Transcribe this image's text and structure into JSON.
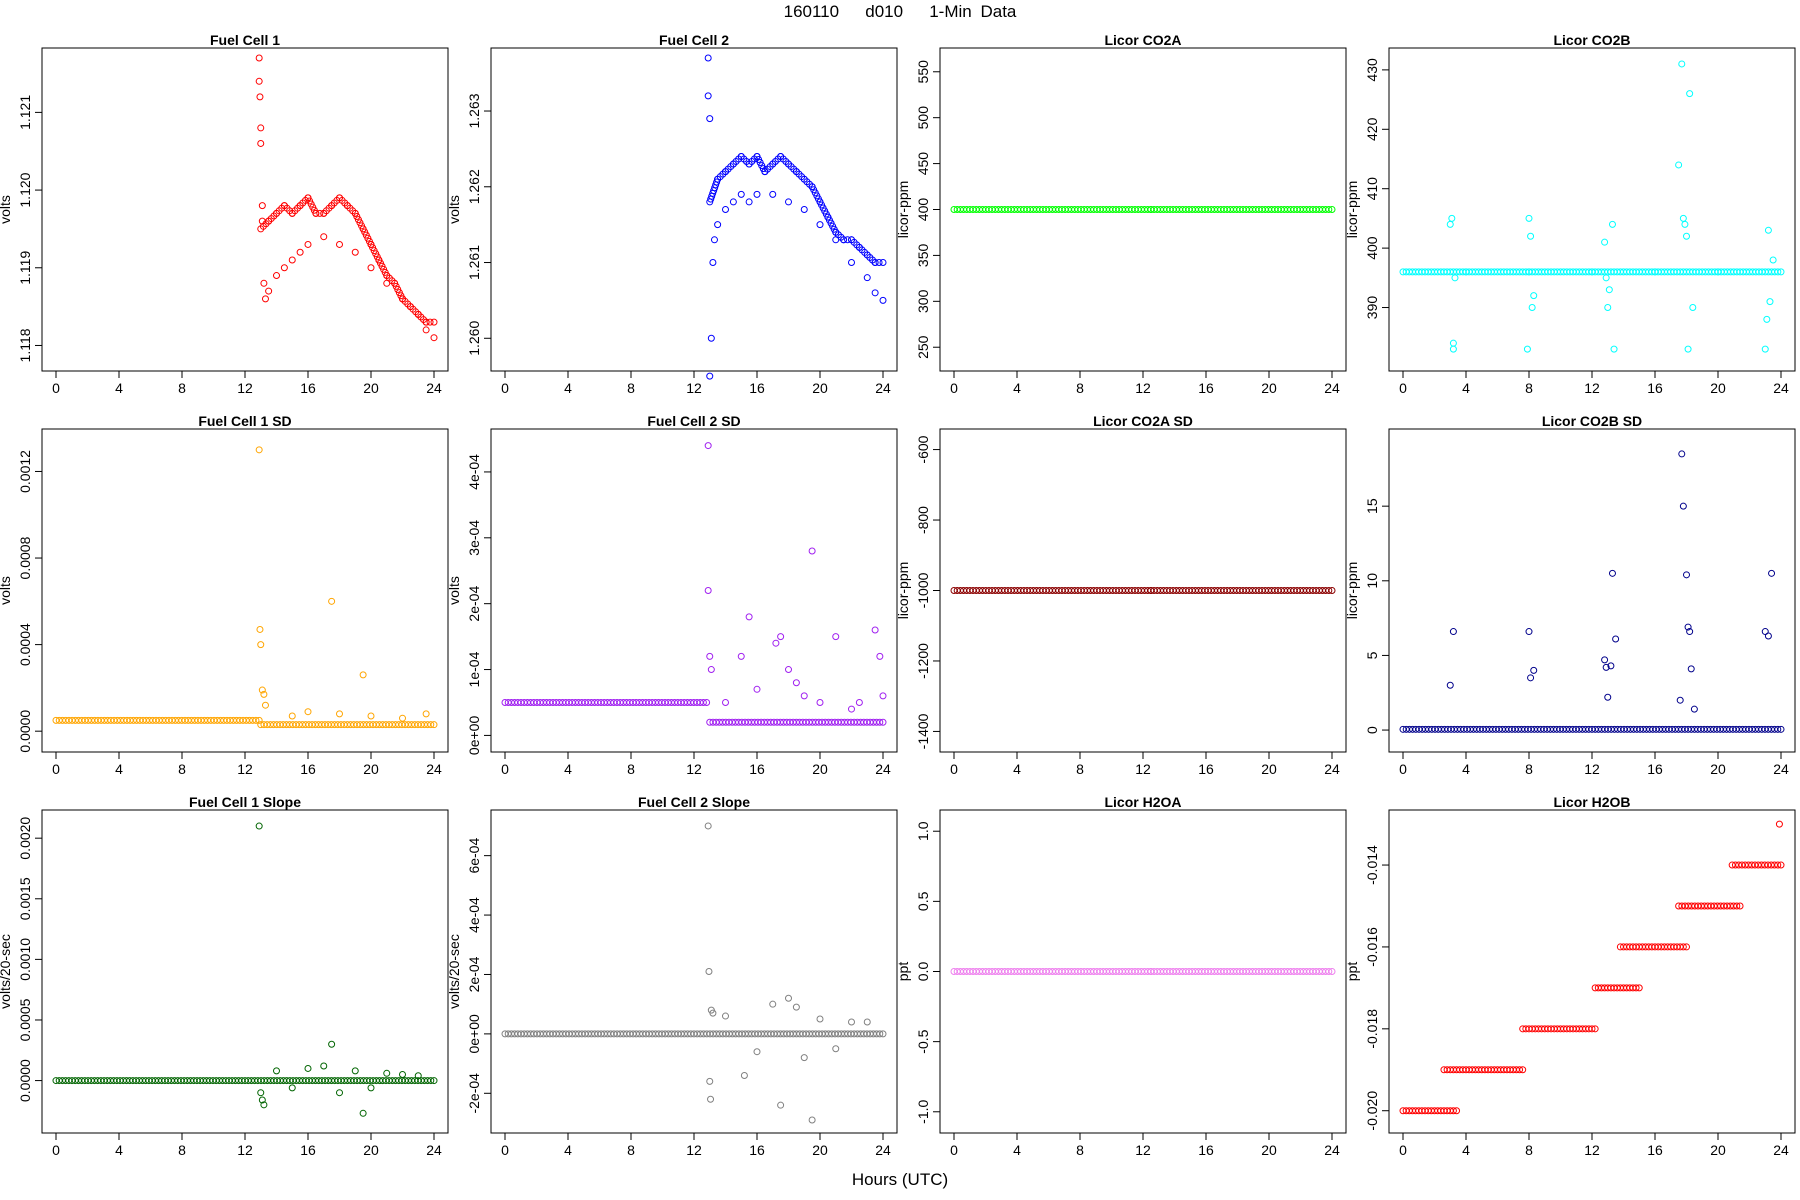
{
  "figure": {
    "title": "160110   d010   1-Min Data",
    "xlabel": "Hours (UTC)"
  },
  "chart_data": [
    {
      "id": "fc1",
      "type": "scatter",
      "title": "Fuel Cell 1",
      "ylabel": "volts",
      "color": "#ff0000",
      "xlim": [
        0,
        24
      ],
      "xticks": [
        0,
        4,
        8,
        12,
        16,
        20,
        24
      ],
      "ylim": [
        1.1178,
        1.1217
      ],
      "yticks": [
        1.118,
        1.119,
        1.12,
        1.121
      ],
      "yticklabels": [
        "1.118",
        "1.119",
        "1.120",
        "1.121"
      ],
      "series": [
        {
          "x": [
            13,
            13.5,
            14,
            14.5,
            15,
            15.5,
            16,
            16.5,
            17,
            17.5,
            18,
            18.5,
            19,
            19.5,
            20,
            20.5,
            21,
            21.5,
            22,
            22.5,
            23,
            23.5,
            24
          ],
          "y": [
            1.1195,
            1.1196,
            1.1197,
            1.1198,
            1.1197,
            1.1198,
            1.1199,
            1.1197,
            1.1197,
            1.1198,
            1.1199,
            1.1198,
            1.1197,
            1.1195,
            1.1193,
            1.1191,
            1.1189,
            1.1188,
            1.1186,
            1.1185,
            1.1184,
            1.1183,
            1.1183
          ]
        }
      ],
      "points": {
        "x": [
          12.9,
          12.9,
          12.95,
          13,
          13,
          13.1,
          13.1,
          13.2,
          13.3,
          13.5,
          14,
          14.5,
          15,
          15.5,
          16,
          17,
          18,
          19,
          20,
          21,
          22,
          23,
          23.5,
          24
        ],
        "y": [
          1.1217,
          1.1214,
          1.1212,
          1.1208,
          1.1206,
          1.1198,
          1.1196,
          1.1188,
          1.1186,
          1.1187,
          1.1189,
          1.119,
          1.1191,
          1.1192,
          1.1193,
          1.1194,
          1.1193,
          1.1192,
          1.119,
          1.1188,
          1.1186,
          1.1184,
          1.1182,
          1.1181
        ]
      }
    },
    {
      "id": "fc2",
      "type": "scatter",
      "title": "Fuel Cell 2",
      "ylabel": "volts",
      "color": "#0000ff",
      "xlim": [
        0,
        24
      ],
      "xticks": [
        0,
        4,
        8,
        12,
        16,
        20,
        24
      ],
      "ylim": [
        1.2597,
        1.2637
      ],
      "yticks": [
        1.26,
        1.261,
        1.262,
        1.263
      ],
      "yticklabels": [
        "1.260",
        "1.261",
        "1.262",
        "1.263"
      ],
      "series": [
        {
          "x": [
            13,
            13.5,
            14,
            14.5,
            15,
            15.5,
            16,
            16.5,
            17,
            17.5,
            18,
            18.5,
            19,
            19.5,
            20,
            20.5,
            21,
            21.5,
            22,
            22.5,
            23,
            23.5,
            24
          ],
          "y": [
            1.2618,
            1.2621,
            1.2622,
            1.2623,
            1.2624,
            1.2623,
            1.2624,
            1.2622,
            1.2623,
            1.2624,
            1.2623,
            1.2622,
            1.2621,
            1.262,
            1.2618,
            1.2616,
            1.2614,
            1.2613,
            1.2613,
            1.2612,
            1.2611,
            1.261,
            1.261
          ]
        }
      ],
      "points": {
        "x": [
          12.9,
          12.9,
          13,
          13,
          13.1,
          13.2,
          13.3,
          13.5,
          14,
          14.5,
          15,
          15.5,
          16,
          17,
          18,
          19,
          20,
          21,
          22,
          23,
          23.5,
          24
        ],
        "y": [
          1.2637,
          1.2632,
          1.2629,
          1.2595,
          1.26,
          1.261,
          1.2613,
          1.2615,
          1.2617,
          1.2618,
          1.2619,
          1.2618,
          1.2619,
          1.2619,
          1.2618,
          1.2617,
          1.2615,
          1.2613,
          1.261,
          1.2608,
          1.2606,
          1.2605
        ]
      }
    },
    {
      "id": "co2a",
      "type": "scatter",
      "title": "Licor CO2A",
      "ylabel": "licor-ppm",
      "color": "#00ff00",
      "xlim": [
        0,
        24
      ],
      "xticks": [
        0,
        4,
        8,
        12,
        16,
        20,
        24
      ],
      "ylim": [
        235,
        565
      ],
      "yticks": [
        250,
        300,
        350,
        400,
        450,
        500,
        550
      ],
      "yticklabels": [
        "250",
        "300",
        "350",
        "400",
        "450",
        "500",
        "550"
      ],
      "series": [
        {
          "x": [
            0,
            12.5,
            24
          ],
          "y": [
            400,
            400,
            400
          ]
        }
      ],
      "points": {
        "x": [],
        "y": []
      }
    },
    {
      "id": "co2b",
      "type": "scatter",
      "title": "Licor CO2B",
      "ylabel": "licor-ppm",
      "color": "#00ffff",
      "xlim": [
        0,
        24
      ],
      "xticks": [
        0,
        4,
        8,
        12,
        16,
        20,
        24
      ],
      "ylim": [
        381,
        432
      ],
      "yticks": [
        390,
        400,
        410,
        420,
        430
      ],
      "yticklabels": [
        "390",
        "400",
        "410",
        "420",
        "430"
      ],
      "series": [
        {
          "x": [
            0,
            4,
            8,
            12,
            16,
            20,
            24
          ],
          "y": [
            396,
            396,
            396,
            396,
            396,
            396,
            396
          ]
        }
      ],
      "points": {
        "x": [
          3,
          3.1,
          3.2,
          3.2,
          3.3,
          7.9,
          8,
          8.1,
          8.2,
          8.3,
          12.8,
          12.9,
          13,
          13.1,
          13.3,
          13.4,
          17.5,
          17.7,
          17.8,
          17.9,
          18,
          18.1,
          18.2,
          18.4,
          23,
          23.1,
          23.2,
          23.3,
          23.5
        ],
        "y": [
          404,
          405,
          384,
          383,
          395,
          383,
          405,
          402,
          390,
          392,
          401,
          395,
          390,
          393,
          404,
          383,
          414,
          431,
          405,
          404,
          402,
          383,
          426,
          390,
          383,
          388,
          403,
          391,
          398
        ]
      }
    },
    {
      "id": "fc1sd",
      "type": "scatter",
      "title": "Fuel Cell 1 SD",
      "ylabel": "volts",
      "color": "#ffa500",
      "xlim": [
        0,
        24
      ],
      "xticks": [
        0,
        4,
        8,
        12,
        16,
        20,
        24
      ],
      "ylim": [
        -5e-05,
        0.00135
      ],
      "yticks": [
        0,
        0.0004,
        0.0008,
        0.0012
      ],
      "yticklabels": [
        "0.0000",
        "0.0004",
        "0.0008",
        "0.0012"
      ],
      "series": [
        {
          "x": [
            0,
            12.9
          ],
          "y": [
            5e-05,
            5e-05
          ]
        },
        {
          "x": [
            13,
            24
          ],
          "y": [
            3e-05,
            3e-05
          ]
        }
      ],
      "points": {
        "x": [
          12.9,
          12.95,
          13,
          13.1,
          13.2,
          13.3,
          17.5,
          19.5,
          15,
          16,
          18,
          20,
          22,
          23.5
        ],
        "y": [
          0.0013,
          0.00047,
          0.0004,
          0.00019,
          0.00017,
          0.00012,
          0.0006,
          0.00026,
          7e-05,
          9e-05,
          8e-05,
          7e-05,
          6e-05,
          8e-05
        ]
      }
    },
    {
      "id": "fc2sd",
      "type": "scatter",
      "title": "Fuel Cell 2 SD",
      "ylabel": "volts",
      "color": "#a020f0",
      "xlim": [
        0,
        24
      ],
      "xticks": [
        0,
        4,
        8,
        12,
        16,
        20,
        24
      ],
      "ylim": [
        -1e-05,
        0.00045
      ],
      "yticks": [
        0,
        0.0001,
        0.0002,
        0.0003,
        0.0004
      ],
      "yticklabels": [
        "0e+00",
        "1e-04",
        "2e-04",
        "3e-04",
        "4e-04"
      ],
      "series": [
        {
          "x": [
            0,
            12.8
          ],
          "y": [
            5e-05,
            5e-05
          ]
        },
        {
          "x": [
            13,
            24
          ],
          "y": [
            2e-05,
            2e-05
          ]
        }
      ],
      "points": {
        "x": [
          12.9,
          12.9,
          13,
          13.1,
          15,
          15.5,
          17.2,
          17.5,
          19.5,
          21,
          23.5,
          23.8,
          14,
          16,
          18,
          18.5,
          19,
          20,
          22,
          22.5,
          24
        ],
        "y": [
          0.00044,
          0.00022,
          0.00012,
          0.0001,
          0.00012,
          0.00018,
          0.00014,
          0.00015,
          0.00028,
          0.00015,
          0.00016,
          0.00012,
          5e-05,
          7e-05,
          0.0001,
          8e-05,
          6e-05,
          5e-05,
          4e-05,
          5e-05,
          6e-05
        ]
      }
    },
    {
      "id": "co2asd",
      "type": "scatter",
      "title": "Licor CO2A SD",
      "ylabel": "licor-ppm",
      "color": "#8b0000",
      "xlim": [
        0,
        24
      ],
      "xticks": [
        0,
        4,
        8,
        12,
        16,
        20,
        24
      ],
      "ylim": [
        -1430,
        -570
      ],
      "yticks": [
        -1400,
        -1200,
        -1000,
        -800,
        -600
      ],
      "yticklabels": [
        "-1400",
        "-1200",
        "-1000",
        "-800",
        "-600"
      ],
      "series": [
        {
          "x": [
            0,
            12.5,
            24
          ],
          "y": [
            -1000,
            -1000,
            -1000
          ]
        }
      ],
      "points": {
        "x": [],
        "y": []
      }
    },
    {
      "id": "co2bsd",
      "type": "scatter",
      "title": "Licor CO2B SD",
      "ylabel": "licor-ppm",
      "color": "#00008b",
      "xlim": [
        0,
        24
      ],
      "xticks": [
        0,
        4,
        8,
        12,
        16,
        20,
        24
      ],
      "ylim": [
        -0.8,
        19.5
      ],
      "yticks": [
        0,
        5,
        10,
        15
      ],
      "yticklabels": [
        "0",
        "5",
        "10",
        "15"
      ],
      "series": [
        {
          "x": [
            0,
            24
          ],
          "y": [
            0.05,
            0.05
          ]
        }
      ],
      "points": {
        "x": [
          3,
          3.2,
          8,
          8.1,
          8.3,
          12.8,
          12.9,
          13,
          13.3,
          13.5,
          13.2,
          17.7,
          17.8,
          18,
          18.1,
          18.2,
          18.3,
          23,
          23.2,
          23.4,
          17.6,
          18.5
        ],
        "y": [
          3,
          6.6,
          6.6,
          3.5,
          4,
          4.7,
          4.2,
          2.2,
          10.5,
          6.1,
          4.3,
          18.5,
          15,
          10.4,
          6.9,
          6.6,
          4.1,
          6.6,
          6.3,
          10.5,
          2,
          1.4
        ]
      }
    },
    {
      "id": "fc1slope",
      "type": "scatter",
      "title": "Fuel Cell 1 Slope",
      "ylabel": "volts/20-sec",
      "color": "#006400",
      "xlim": [
        0,
        24
      ],
      "xticks": [
        0,
        4,
        8,
        12,
        16,
        20,
        24
      ],
      "ylim": [
        -0.00035,
        0.00215
      ],
      "yticks": [
        0,
        0.0005,
        0.001,
        0.0015,
        0.002
      ],
      "yticklabels": [
        "0.0000",
        "0.0005",
        "0.0010",
        "0.0015",
        "0.0020"
      ],
      "series": [
        {
          "x": [
            0,
            24
          ],
          "y": [
            0,
            0
          ]
        }
      ],
      "points": {
        "x": [
          12.9,
          13,
          13.1,
          13.2,
          17.5,
          19.5,
          14,
          15,
          16,
          17,
          18,
          19,
          20,
          21,
          22,
          23
        ],
        "y": [
          0.0021,
          -0.0001,
          -0.00016,
          -0.0002,
          0.0003,
          -0.00027,
          8e-05,
          -6e-05,
          0.0001,
          0.00012,
          -0.0001,
          8e-05,
          -6e-05,
          6e-05,
          5e-05,
          4e-05
        ]
      }
    },
    {
      "id": "fc2slope",
      "type": "scatter",
      "title": "Fuel Cell 2 Slope",
      "ylabel": "volts/20-sec",
      "color": "#808080",
      "xlim": [
        0,
        24
      ],
      "xticks": [
        0,
        4,
        8,
        12,
        16,
        20,
        24
      ],
      "ylim": [
        -0.0003,
        0.00072
      ],
      "yticks": [
        -0.0002,
        0,
        0.0002,
        0.0004,
        0.0006
      ],
      "yticklabels": [
        "-2e-04",
        "0e+00",
        "2e-04",
        "4e-04",
        "6e-04"
      ],
      "series": [
        {
          "x": [
            0,
            24
          ],
          "y": [
            0,
            0
          ]
        }
      ],
      "points": {
        "x": [
          12.9,
          12.95,
          13,
          13.05,
          13.1,
          13.2,
          15.2,
          17.5,
          19.5,
          14,
          16,
          17,
          18,
          18.5,
          19,
          20,
          21,
          22,
          23
        ],
        "y": [
          0.0007,
          0.00021,
          -0.00016,
          -0.00022,
          8e-05,
          7e-05,
          -0.00014,
          -0.00024,
          -0.00029,
          6e-05,
          -6e-05,
          0.0001,
          0.00012,
          9e-05,
          -8e-05,
          5e-05,
          -5e-05,
          4e-05,
          4e-05
        ]
      }
    },
    {
      "id": "h2oa",
      "type": "scatter",
      "title": "Licor H2OA",
      "ylabel": "ppt",
      "color": "#ee82ee",
      "xlim": [
        0,
        24
      ],
      "xticks": [
        0,
        4,
        8,
        12,
        16,
        20,
        24
      ],
      "ylim": [
        -1.08,
        1.08
      ],
      "yticks": [
        -1.0,
        -0.5,
        0,
        0.5,
        1.0
      ],
      "yticklabels": [
        "-1.0",
        "-0.5",
        "0.0",
        "0.5",
        "1.0"
      ],
      "series": [
        {
          "x": [
            0,
            12.5,
            24
          ],
          "y": [
            0,
            0,
            0
          ]
        }
      ],
      "points": {
        "x": [],
        "y": []
      }
    },
    {
      "id": "h2ob",
      "type": "scatter",
      "title": "Licor H2OB",
      "ylabel": "ppt",
      "color": "#ff0000",
      "xlim": [
        0,
        24
      ],
      "xticks": [
        0,
        4,
        8,
        12,
        16,
        20,
        24
      ],
      "ylim": [
        -0.0203,
        -0.0129
      ],
      "yticks": [
        -0.02,
        -0.018,
        -0.016,
        -0.014
      ],
      "yticklabels": [
        "-0.020",
        "-0.018",
        "-0.016",
        "-0.014"
      ],
      "series": [
        {
          "x": [
            0,
            3.4
          ],
          "y": [
            -0.02,
            -0.02
          ]
        },
        {
          "x": [
            2.6,
            7.6
          ],
          "y": [
            -0.019,
            -0.019
          ]
        },
        {
          "x": [
            7.6,
            12.2
          ],
          "y": [
            -0.018,
            -0.018
          ]
        },
        {
          "x": [
            12.2,
            15
          ],
          "y": [
            -0.017,
            -0.017
          ]
        },
        {
          "x": [
            13.8,
            18
          ],
          "y": [
            -0.016,
            -0.016
          ]
        },
        {
          "x": [
            17.5,
            21.4
          ],
          "y": [
            -0.015,
            -0.015
          ]
        },
        {
          "x": [
            20.9,
            24
          ],
          "y": [
            -0.014,
            -0.014
          ]
        }
      ],
      "points": {
        "x": [
          23.9
        ],
        "y": [
          -0.013
        ]
      }
    }
  ]
}
